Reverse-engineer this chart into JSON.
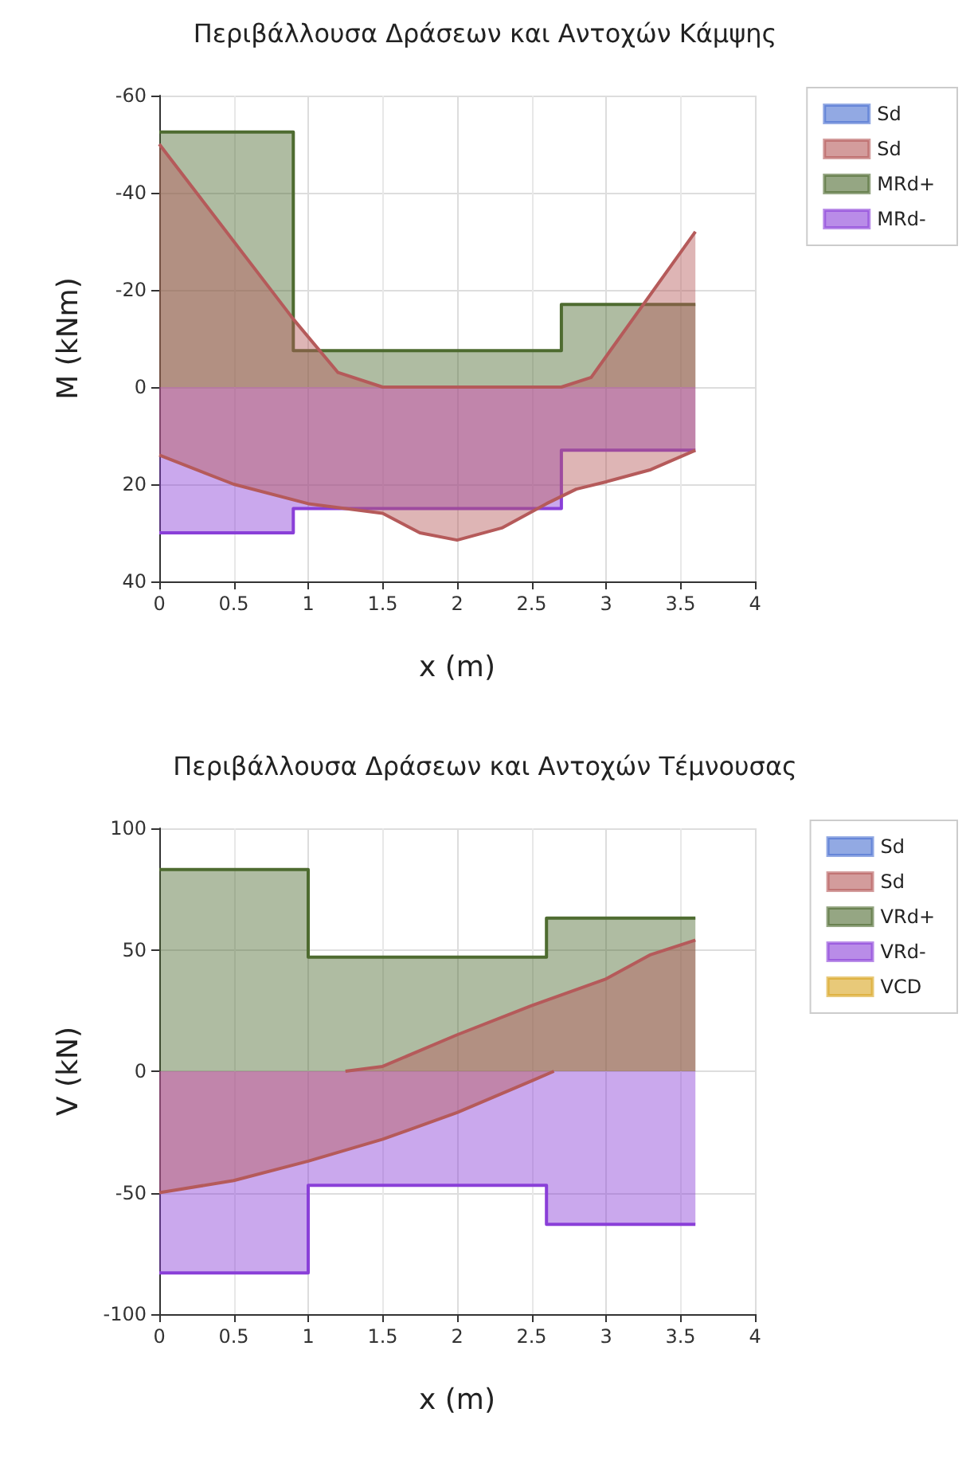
{
  "chart_data": [
    {
      "type": "area",
      "title": "Περιβάλλουσα Δράσεων και Αντοχών Κάμψης",
      "xlabel": "x (m)",
      "ylabel": "M (kNm)",
      "xlim": [
        0,
        4
      ],
      "xticks": [
        0,
        0.5,
        1,
        1.5,
        2,
        2.5,
        3,
        3.5,
        4
      ],
      "ylim": [
        40,
        -60
      ],
      "yticks": [
        -60,
        -40,
        -20,
        0,
        20,
        40
      ],
      "grid": true,
      "legend": "top right",
      "series": [
        {
          "name": "Sd",
          "color": "#4a6fd0"
        },
        {
          "name": "Sd",
          "color": "#b55a5a",
          "x": [
            0,
            0.9,
            1.2,
            1.5,
            2.7,
            2.9,
            3.6
          ],
          "values": [
            -50,
            -14,
            -3,
            0,
            0,
            -2,
            -32
          ]
        },
        {
          "color": "#b55a5a",
          "x": [
            0,
            0.5,
            1,
            1.5,
            1.75,
            2,
            2.3,
            2.6,
            2.8,
            3,
            3.3,
            3.6
          ],
          "values": [
            14,
            20,
            24,
            26,
            30,
            31.5,
            29,
            24,
            21,
            19.5,
            17,
            13
          ]
        },
        {
          "name": "MRd+",
          "color": "#4e6b30",
          "x": [
            0,
            0.9,
            0.9,
            2.7,
            2.7,
            3.6
          ],
          "values": [
            -52.5,
            -52.5,
            -7.5,
            -7.5,
            -17,
            -17
          ]
        },
        {
          "name": "MRd-",
          "color": "#8a3fd8",
          "x": [
            0,
            0.9,
            0.9,
            2.7,
            2.7,
            3.6
          ],
          "values": [
            30,
            30,
            25,
            25,
            13,
            13
          ]
        }
      ]
    },
    {
      "type": "area",
      "title": "Περιβάλλουσα Δράσεων και Αντοχών Τέμνουσας",
      "xlabel": "x (m)",
      "ylabel": "V (kN)",
      "xlim": [
        0,
        4
      ],
      "xticks": [
        0,
        0.5,
        1,
        1.5,
        2,
        2.5,
        3,
        3.5,
        4
      ],
      "ylim": [
        -100,
        100
      ],
      "yticks": [
        -100,
        -50,
        0,
        50,
        100
      ],
      "grid": true,
      "legend": "top right",
      "series": [
        {
          "name": "Sd",
          "color": "#4a6fd0"
        },
        {
          "name": "Sd",
          "color": "#b55a5a",
          "x": [
            1.25,
            1.5,
            2,
            2.5,
            3,
            3.3,
            3.6
          ],
          "values": [
            0,
            2,
            15,
            27,
            38,
            48,
            54
          ]
        },
        {
          "color": "#b55a5a",
          "x": [
            0,
            0.5,
            1,
            1.5,
            2,
            2.5,
            2.65
          ],
          "values": [
            -50,
            -45,
            -37,
            -28,
            -17,
            -4,
            0
          ]
        },
        {
          "name": "VRd+",
          "color": "#4e6b30",
          "x": [
            0,
            1,
            1,
            2.6,
            2.6,
            3.6
          ],
          "values": [
            83,
            83,
            47,
            47,
            63,
            63
          ]
        },
        {
          "name": "VRd-",
          "color": "#8a3fd8",
          "x": [
            0,
            1,
            1,
            2.6,
            2.6,
            3.6
          ],
          "values": [
            -83,
            -83,
            -47,
            -47,
            -63,
            -63
          ]
        },
        {
          "name": "VCD",
          "color": "#d9a520"
        }
      ]
    }
  ]
}
